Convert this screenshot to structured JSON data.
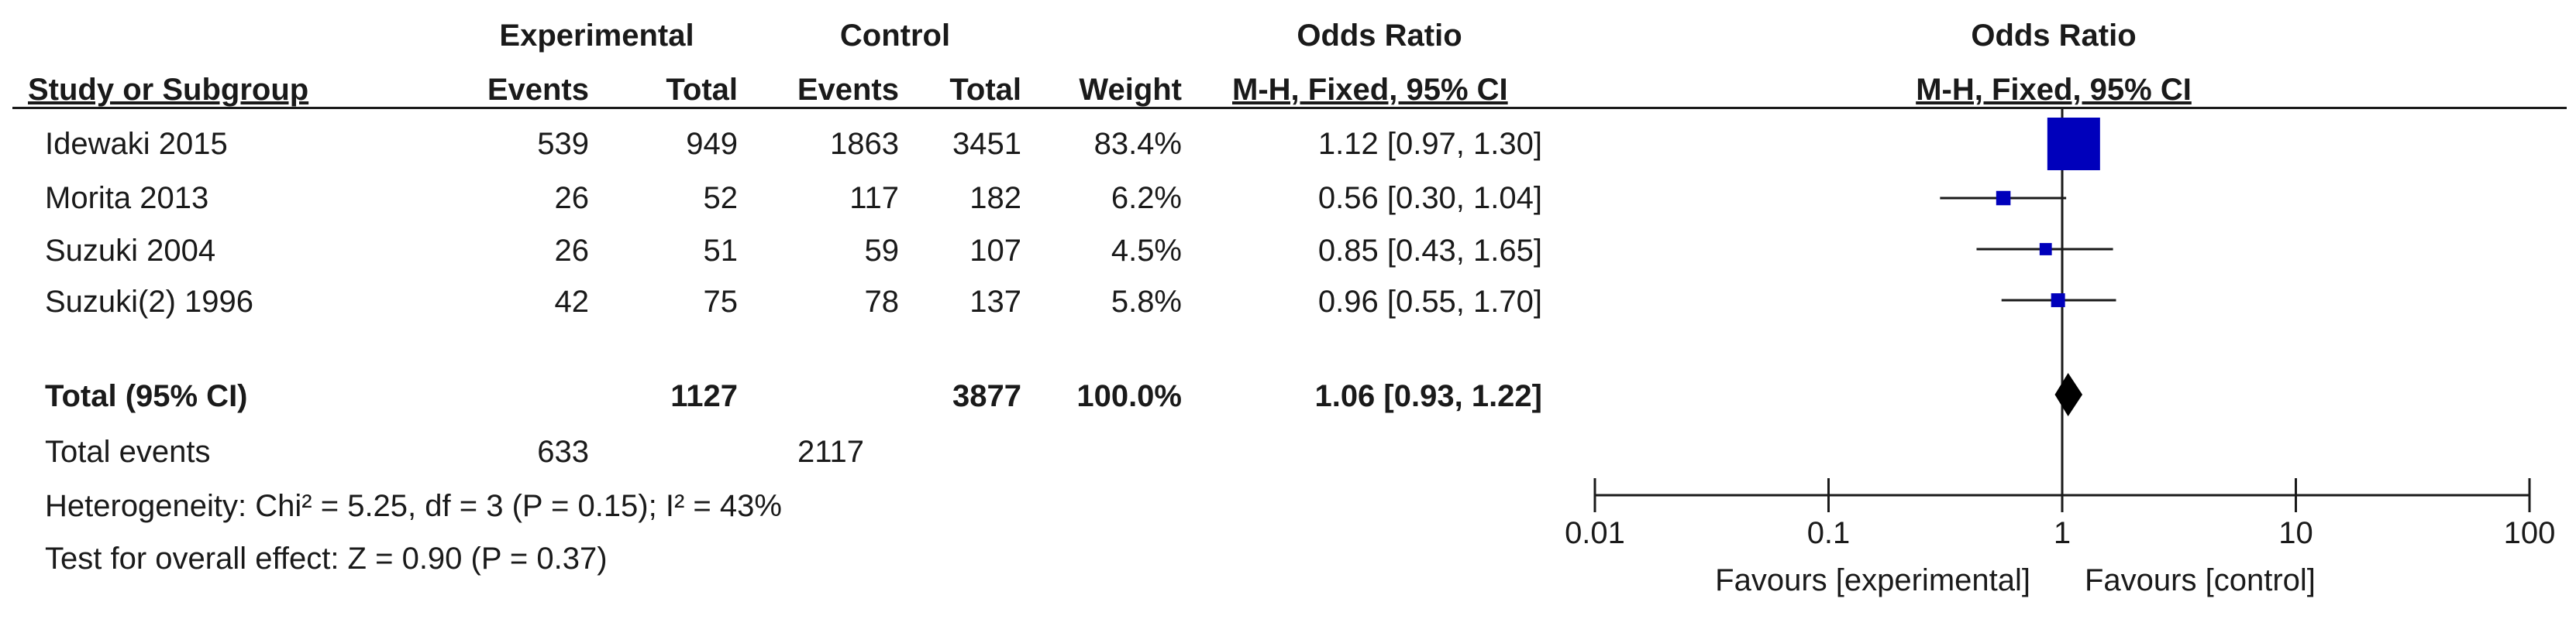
{
  "header": {
    "experimental": "Experimental",
    "control": "Control",
    "odds_ratio": "Odds Ratio",
    "study_or_subgroup": "Study or Subgroup",
    "events_exp": "Events",
    "total_exp": "Total",
    "events_ctl": "Events",
    "total_ctl": "Total",
    "weight": "Weight",
    "method": "M-H, Fixed, 95% CI",
    "plot_title": "Odds Ratio",
    "plot_method": "M-H, Fixed, 95% CI"
  },
  "studies": [
    {
      "name": "Idewaki 2015",
      "exp_events": "539",
      "exp_total": "949",
      "ctl_events": "1863",
      "ctl_total": "3451",
      "weight": "83.4%",
      "ci_text": "1.12 [0.97, 1.30]"
    },
    {
      "name": "Morita 2013",
      "exp_events": "26",
      "exp_total": "52",
      "ctl_events": "117",
      "ctl_total": "182",
      "weight": "6.2%",
      "ci_text": "0.56 [0.30, 1.04]"
    },
    {
      "name": "Suzuki 2004",
      "exp_events": "26",
      "exp_total": "51",
      "ctl_events": "59",
      "ctl_total": "107",
      "weight": "4.5%",
      "ci_text": "0.85 [0.43, 1.65]"
    },
    {
      "name": "Suzuki(2) 1996",
      "exp_events": "42",
      "exp_total": "75",
      "ctl_events": "78",
      "ctl_total": "137",
      "weight": "5.8%",
      "ci_text": "0.96 [0.55, 1.70]"
    }
  ],
  "total": {
    "label": "Total (95% CI)",
    "exp_total": "1127",
    "ctl_total": "3877",
    "weight": "100.0%",
    "ci_text": "1.06 [0.93, 1.22]"
  },
  "total_events": {
    "label": "Total events",
    "exp": "633",
    "ctl": "2117"
  },
  "heterogeneity": "Heterogeneity: Chi² = 5.25, df = 3 (P = 0.15); I² = 43%",
  "overall_effect": "Test for overall effect: Z = 0.90 (P = 0.37)",
  "axis": {
    "favours_left": "Favours [experimental]",
    "favours_right": "Favours [control]"
  },
  "chart_data": {
    "type": "forest",
    "scale": "log",
    "xlim": [
      0.01,
      100
    ],
    "ticks": [
      0.01,
      0.1,
      1,
      10,
      100
    ],
    "tick_labels": [
      "0.01",
      "0.1",
      "1",
      "10",
      "100"
    ],
    "reference_line": 1,
    "colors": {
      "study_marker": "#0000bb",
      "summary_marker": "#000000",
      "lines": "#1a1a1a"
    },
    "series": [
      {
        "name": "Idewaki 2015",
        "or": 1.12,
        "lower": 0.97,
        "upper": 1.3,
        "weight": 83.4
      },
      {
        "name": "Morita 2013",
        "or": 0.56,
        "lower": 0.3,
        "upper": 1.04,
        "weight": 6.2
      },
      {
        "name": "Suzuki 2004",
        "or": 0.85,
        "lower": 0.43,
        "upper": 1.65,
        "weight": 4.5
      },
      {
        "name": "Suzuki(2) 1996",
        "or": 0.96,
        "lower": 0.55,
        "upper": 1.7,
        "weight": 5.8
      }
    ],
    "summary": {
      "name": "Total (95% CI)",
      "or": 1.06,
      "lower": 0.93,
      "upper": 1.22
    }
  }
}
